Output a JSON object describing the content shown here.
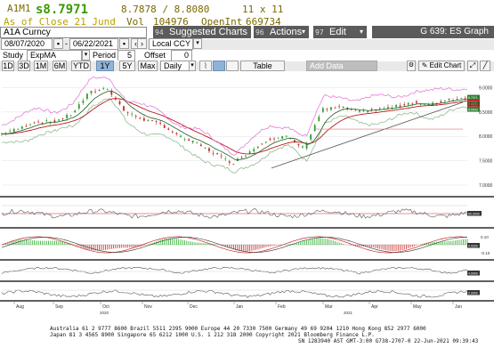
{
  "quote": {
    "ticker": "A1M1",
    "last": "s8.7971",
    "bid_ask": "8.7878 / 8.8080",
    "size": "11 x 11",
    "as_of": "As of Close 21 Jund",
    "vol_label": "Vol",
    "vol": "104976",
    "openint_label": "OpenInt",
    "openint": "669734"
  },
  "toolbar": {
    "security": "A1A Curncy",
    "suggested_num": "94",
    "suggested_label": "Suggested Charts",
    "actions_num": "96",
    "actions_label": "Actions",
    "edit_num": "97",
    "edit_label": "Edit",
    "page_label": "G 639: ES Graph"
  },
  "range_bar": {
    "start_date": "08/07/2020",
    "end_date": "06/22/2021",
    "currency": "Local CCY"
  },
  "study_bar": {
    "study_label": "Study",
    "study_value": "ExpMA",
    "period_label": "Period",
    "period_value": "5",
    "offset_label": "Offset",
    "offset_value": "0"
  },
  "period_bar": {
    "ranges": [
      "1D",
      "3D",
      "1M",
      "6M",
      "YTD",
      "1Y",
      "5Y",
      "Max"
    ],
    "selected": "1Y",
    "frequency": "Daily",
    "table_label": "Table",
    "add_data_label": "Add Data",
    "edit_chart_label": "Edit Chart"
  },
  "chart": {
    "y_ticks": [
      "9.0000",
      "8.5000",
      "8.0000",
      "7.5000",
      "7.0000"
    ],
    "price_tags": [
      "8.7971",
      "8.7000",
      "8.6500",
      "8.6000",
      "8.5500"
    ],
    "x_months": [
      "Aug",
      "Sep",
      "Oct",
      "Nov",
      "Dec",
      "Jan",
      "Feb",
      "Mar",
      "Apr",
      "May",
      "Jun"
    ],
    "x_years": [
      "2020",
      "2021"
    ],
    "panel_tags": [
      "60.0000",
      "0.0200",
      "4.0000",
      "2.0000"
    ],
    "panel2_ticks": [
      "0.10",
      "-0.10"
    ],
    "colors": {
      "price_line": "#2e7d32",
      "ema": "#b71c1c",
      "bollinger": "#e36ad6",
      "lower_band": "#2e7d32",
      "trend": "#555555",
      "macd_up": "#3cb43c",
      "macd_down": "#d23c3c"
    }
  },
  "footer": {
    "line1": "Australia 61 2 9777 8600 Brazil 5511 2395 9000 Europe 44 20 7330 7500 Germany 49 69 9204 1210 Hong Kong 852 2977 6000",
    "line2": "Japan 81 3 4565 8900        Singapore 65 6212 1000        U.S. 1 212 318 2000        Copyright 2021 Bloomberg Finance L.P.",
    "line3": "SN 1283940 AST  GMT-3:00 G738-2707-0 22-Jun-2021 09:39:43"
  }
}
